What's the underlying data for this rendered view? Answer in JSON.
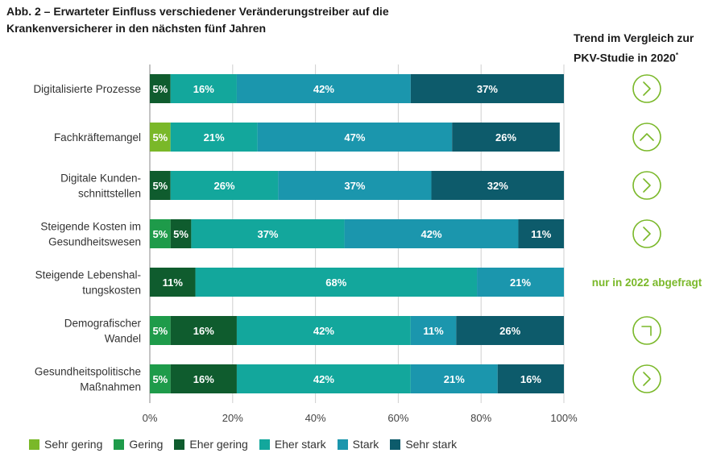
{
  "title_line1": "Abb. 2 – Erwarteter Einfluss verschiedener Veränderungstreiber auf die",
  "title_line2": "Krankenversicherer in den nächsten fünf Jahren",
  "trend_header_line1": "Trend im Vergleich zur",
  "trend_header_line2": "PKV-Studie in 2020",
  "trend_header_sup": "*",
  "colors": {
    "sehr_gering": "#7ab829",
    "gering": "#1e9b4a",
    "eher_gering": "#0f5c2e",
    "eher_stark": "#13a79c",
    "stark": "#1b96ad",
    "sehr_stark": "#0d5b6b",
    "trend_icon": "#7ab829"
  },
  "chart_data": {
    "type": "bar",
    "orientation": "horizontal-stacked",
    "xlim": [
      0,
      100
    ],
    "x_ticks": [
      "0%",
      "20%",
      "40%",
      "60%",
      "80%",
      "100%"
    ],
    "grid": true,
    "legend_position": "bottom",
    "series_names": [
      "Sehr gering",
      "Gering",
      "Eher gering",
      "Eher stark",
      "Stark",
      "Sehr stark"
    ],
    "rows": [
      {
        "label": [
          "Digitalisierte Prozesse"
        ],
        "segments": [
          {
            "series": 2,
            "value": 5,
            "label": "5%"
          },
          {
            "series": 3,
            "value": 16,
            "label": "16%"
          },
          {
            "series": 4,
            "value": 42,
            "label": "42%"
          },
          {
            "series": 5,
            "value": 37,
            "label": "37%"
          }
        ],
        "trend": "chevron-right-icon",
        "trend_text": ""
      },
      {
        "label": [
          "Fachkräftemangel"
        ],
        "segments": [
          {
            "series": 0,
            "value": 5,
            "label": "5%"
          },
          {
            "series": 3,
            "value": 21,
            "label": "21%"
          },
          {
            "series": 4,
            "value": 47,
            "label": "47%"
          },
          {
            "series": 5,
            "value": 26,
            "label": "26%"
          }
        ],
        "trend": "chevron-up-icon",
        "trend_text": ""
      },
      {
        "label": [
          "Digitale Kunden-",
          "schnittstellen"
        ],
        "segments": [
          {
            "series": 2,
            "value": 5,
            "label": "5%"
          },
          {
            "series": 3,
            "value": 26,
            "label": "26%"
          },
          {
            "series": 4,
            "value": 37,
            "label": "37%"
          },
          {
            "series": 5,
            "value": 32,
            "label": "32%"
          }
        ],
        "trend": "chevron-right-icon",
        "trend_text": ""
      },
      {
        "label": [
          "Steigende Kosten im",
          "Gesundheitswesen"
        ],
        "segments": [
          {
            "series": 1,
            "value": 5,
            "label": "5%"
          },
          {
            "series": 2,
            "value": 5,
            "label": "5%"
          },
          {
            "series": 3,
            "value": 37,
            "label": "37%"
          },
          {
            "series": 4,
            "value": 42,
            "label": "42%"
          },
          {
            "series": 5,
            "value": 11,
            "label": "11%"
          }
        ],
        "trend": "chevron-right-icon",
        "trend_text": ""
      },
      {
        "label": [
          "Steigende Lebenshal-",
          "tungskosten"
        ],
        "segments": [
          {
            "series": 2,
            "value": 11,
            "label": "11%"
          },
          {
            "series": 3,
            "value": 68,
            "label": "68%"
          },
          {
            "series": 4,
            "value": 21,
            "label": "21%"
          }
        ],
        "trend": "",
        "trend_text": "nur in 2022 abgefragt"
      },
      {
        "label": [
          "Demografischer",
          "Wandel"
        ],
        "segments": [
          {
            "series": 1,
            "value": 5,
            "label": "5%"
          },
          {
            "series": 2,
            "value": 16,
            "label": "16%"
          },
          {
            "series": 3,
            "value": 42,
            "label": "42%"
          },
          {
            "series": 4,
            "value": 11,
            "label": "11%"
          },
          {
            "series": 5,
            "value": 26,
            "label": "26%"
          }
        ],
        "trend": "chevron-down-right-icon",
        "trend_text": ""
      },
      {
        "label": [
          "Gesundheitspolitische",
          "Maßnahmen"
        ],
        "segments": [
          {
            "series": 1,
            "value": 5,
            "label": "5%"
          },
          {
            "series": 2,
            "value": 16,
            "label": "16%"
          },
          {
            "series": 3,
            "value": 42,
            "label": "42%"
          },
          {
            "series": 4,
            "value": 21,
            "label": "21%"
          },
          {
            "series": 5,
            "value": 16,
            "label": "16%"
          }
        ],
        "trend": "chevron-right-icon",
        "trend_text": ""
      }
    ]
  },
  "legend": [
    {
      "label": "Sehr gering",
      "color_key": "sehr_gering"
    },
    {
      "label": "Gering",
      "color_key": "gering"
    },
    {
      "label": "Eher gering",
      "color_key": "eher_gering"
    },
    {
      "label": "Eher stark",
      "color_key": "eher_stark"
    },
    {
      "label": "Stark",
      "color_key": "stark"
    },
    {
      "label": "Sehr stark",
      "color_key": "sehr_stark"
    }
  ]
}
